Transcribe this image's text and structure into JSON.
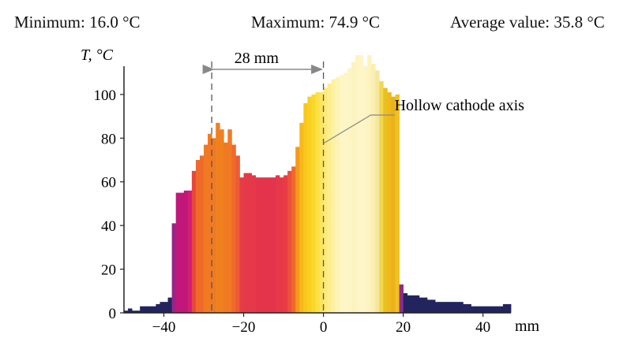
{
  "stats": {
    "min_label": "Minimum:",
    "min_value": "16.0 °C",
    "max_label": "Maximum:",
    "max_value": "74.9 °C",
    "avg_label": "Average value:",
    "avg_value": "35.8 °C"
  },
  "chart_data": {
    "type": "bar",
    "ylabel": "T, °C",
    "xlabel": "mm",
    "xlim": [
      -50,
      47
    ],
    "ylim": [
      0,
      118
    ],
    "xticks": [
      -40,
      -20,
      0,
      20,
      40
    ],
    "yticks": [
      0,
      20,
      40,
      60,
      80,
      100
    ],
    "xtick_labels": [
      "−40",
      "−20",
      "0",
      "20",
      "40"
    ],
    "ytick_labels": [
      "0",
      "20",
      "40",
      "60",
      "80",
      "100"
    ],
    "grid": false,
    "bin_width": 1,
    "bins_start": -50,
    "values": [
      1,
      2,
      1,
      1,
      3,
      3,
      3,
      3,
      4,
      5,
      5,
      7,
      41,
      55,
      55,
      56,
      56,
      65,
      70,
      72,
      77,
      82,
      80,
      87,
      84,
      78,
      84,
      77,
      72,
      62,
      64,
      64,
      63,
      62,
      62,
      62,
      62,
      62,
      63,
      62,
      63,
      65,
      67,
      76,
      87,
      96,
      99,
      100,
      101,
      101,
      103,
      105,
      107,
      108,
      109,
      110,
      112,
      115,
      118,
      118,
      113,
      118,
      114,
      111,
      106,
      103,
      101,
      99,
      100,
      13,
      9,
      8,
      8,
      8,
      7,
      7,
      6,
      6,
      5,
      5,
      5,
      5,
      5,
      5,
      5,
      4,
      4,
      3,
      3,
      3,
      3,
      3,
      3,
      3,
      3,
      4,
      4
    ],
    "colors": [
      "#23245f",
      "#23245f",
      "#23245f",
      "#23245f",
      "#23245f",
      "#23245f",
      "#23245f",
      "#23245f",
      "#23245f",
      "#23245f",
      "#23245f",
      "#23245f",
      "#9a2487",
      "#c1177a",
      "#c1177a",
      "#c1177a",
      "#d21d70",
      "#e8473a",
      "#ef6a2a",
      "#ef6a2a",
      "#f07a23",
      "#f07a23",
      "#f07a23",
      "#f0811f",
      "#f0811f",
      "#f07a23",
      "#f07a23",
      "#f06a2a",
      "#ef5a34",
      "#e43d45",
      "#e5394a",
      "#e5394a",
      "#e5394a",
      "#e3344c",
      "#e3344c",
      "#e3344c",
      "#e3344c",
      "#e3344c",
      "#e5394a",
      "#e5394a",
      "#e83c44",
      "#ec4f3b",
      "#ef6a2a",
      "#f49a1a",
      "#f7b81a",
      "#f9c81c",
      "#f9d021",
      "#fad82b",
      "#fbe042",
      "#fbe560",
      "#fcea79",
      "#fcee8f",
      "#fdf1a4",
      "#fdf4b4",
      "#fef6c3",
      "#fef6c8",
      "#fef5c6",
      "#fdf3bf",
      "#fdf4c4",
      "#fef6ca",
      "#fef5c5",
      "#fdf3bf",
      "#fcf0b0",
      "#f5e7a0",
      "#f1d64f",
      "#e8c021",
      "#f1b81b",
      "#e8b31b",
      "#f3c020",
      "#8a2f8d",
      "#23245f",
      "#23245f",
      "#23245f",
      "#23245f",
      "#23245f",
      "#23245f",
      "#23245f",
      "#23245f",
      "#23245f",
      "#23245f",
      "#23245f",
      "#23245f",
      "#23245f",
      "#23245f",
      "#23245f",
      "#23245f",
      "#23245f",
      "#23245f",
      "#23245f",
      "#23245f",
      "#23245f",
      "#23245f",
      "#23245f",
      "#23245f",
      "#23245f",
      "#23245f",
      "#23245f"
    ],
    "annotations": [
      {
        "text": "28 mm",
        "from_x": -28,
        "to_x": 0
      },
      {
        "text": "Hollow cathode axis",
        "x": 0
      }
    ],
    "dashed_lines_x": [
      -28,
      0
    ]
  }
}
